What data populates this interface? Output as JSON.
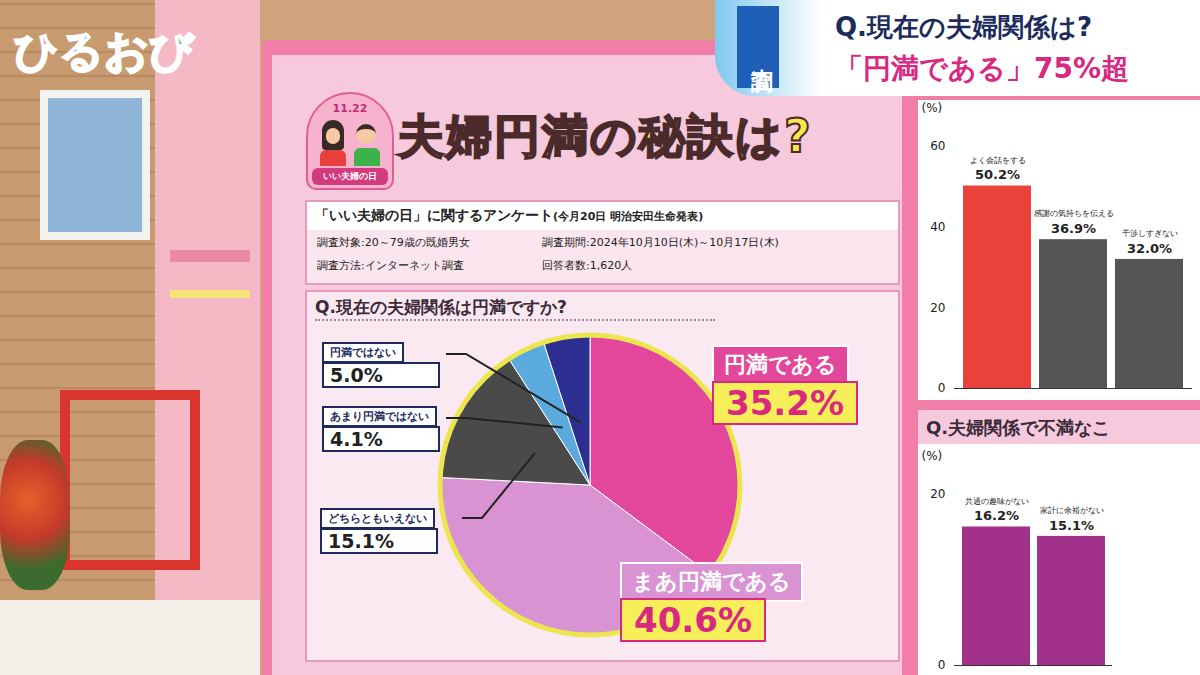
{
  "header": {
    "logo": "ひるおび",
    "tag": "調査",
    "question": "Q.現在の夫婦関係は?",
    "headline": "「円満である」75%超"
  },
  "board": {
    "badge_date": "11.22",
    "badge_text": "いい夫婦の日",
    "title": "夫婦円満の秘訣は?",
    "survey_name": "「いい夫婦の日」に関するアンケート",
    "survey_source": "(今月20日 明治安田生命発表)",
    "details": [
      "調査対象:20～79歳の既婚男女",
      "調査期間:2024年10月10日(木)～10月17日(木)",
      "調査方法:インターネット調査",
      "回答者数:1,620人"
    ]
  },
  "chart_data": [
    {
      "type": "pie",
      "title": "Q.現在の夫婦関係は円満ですか?",
      "categories": [
        "円満である",
        "まあ円満である",
        "どちらともいえない",
        "あまり円満ではない",
        "円満ではない"
      ],
      "values": [
        35.2,
        40.6,
        15.1,
        4.1,
        5.0
      ],
      "value_labels": [
        "35.2%",
        "40.6%",
        "15.1%",
        "4.1%",
        "5.0%"
      ],
      "colors": [
        "#e2479b",
        "#d993d3",
        "#4a4a4a",
        "#5aaade",
        "#2c2f90"
      ],
      "data_labels": true
    },
    {
      "type": "bar",
      "categories": [
        "よく会話をする",
        "感謝の気持ちを伝える",
        "干渉しすぎない"
      ],
      "values": [
        50.2,
        36.9,
        32.0
      ],
      "value_labels": [
        "50.2%",
        "36.9%",
        "32.0%"
      ],
      "colors": [
        "#e8423a",
        "#555555",
        "#555555"
      ],
      "ylabel": "(%)",
      "ylim": [
        0,
        60
      ],
      "yticks": [
        0,
        20,
        40,
        60
      ],
      "grid": false,
      "data_labels": true,
      "tick_labels": "y"
    },
    {
      "type": "bar",
      "title": "Q.夫婦関係で不満なこ",
      "categories": [
        "共通の趣味がない",
        "家計に余裕がない"
      ],
      "values": [
        16.2,
        15.1
      ],
      "value_labels": [
        "16.2%",
        "15.1%"
      ],
      "color": "#a2318c",
      "ylabel": "(%)",
      "ylim": [
        0,
        20
      ],
      "yticks": [
        0,
        20
      ],
      "grid": false,
      "data_labels": true,
      "tick_labels": "y"
    }
  ]
}
